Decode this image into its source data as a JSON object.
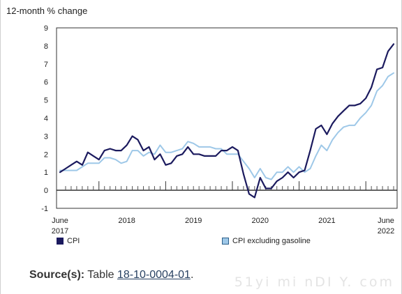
{
  "chart_data": {
    "type": "line",
    "ylabel": "12-month % change",
    "ylim": [
      -1,
      9
    ],
    "yticks": [
      9,
      8,
      7,
      6,
      5,
      4,
      3,
      2,
      1,
      0,
      -1
    ],
    "grid": false,
    "x_tick_labels": [
      {
        "label": "June",
        "sublabel": "2017",
        "month_index": 0
      },
      {
        "label": "2018",
        "month_index": 12
      },
      {
        "label": "2019",
        "month_index": 24
      },
      {
        "label": "2020",
        "month_index": 36
      },
      {
        "label": "2021",
        "month_index": 48
      },
      {
        "label": "June",
        "sublabel": "2022",
        "month_index": 60
      }
    ],
    "year_divider_month_index": [
      7,
      19,
      31,
      43,
      55
    ],
    "x_start": "2017-06",
    "x_end": "2022-06",
    "legend_position": "bottom",
    "series": [
      {
        "name": "CPI",
        "color": "#1b1a5e",
        "values": [
          1.0,
          1.2,
          1.4,
          1.6,
          1.4,
          2.1,
          1.9,
          1.7,
          2.2,
          2.3,
          2.2,
          2.2,
          2.5,
          3.0,
          2.8,
          2.2,
          2.4,
          1.7,
          2.0,
          1.4,
          1.5,
          1.9,
          2.0,
          2.4,
          2.0,
          2.0,
          1.9,
          1.9,
          1.9,
          2.2,
          2.2,
          2.4,
          2.2,
          0.9,
          -0.2,
          -0.4,
          0.7,
          0.1,
          0.1,
          0.5,
          0.7,
          1.0,
          0.7,
          1.0,
          1.1,
          2.2,
          3.4,
          3.6,
          3.1,
          3.7,
          4.1,
          4.4,
          4.7,
          4.7,
          4.8,
          5.1,
          5.7,
          6.7,
          6.8,
          7.7,
          8.1
        ]
      },
      {
        "name": "CPI excluding gasoline",
        "color": "#9ec8e8",
        "values": [
          1.1,
          1.1,
          1.1,
          1.1,
          1.3,
          1.5,
          1.5,
          1.5,
          1.8,
          1.8,
          1.7,
          1.5,
          1.6,
          2.2,
          2.2,
          1.9,
          2.1,
          2.0,
          2.5,
          2.1,
          2.1,
          2.2,
          2.3,
          2.7,
          2.6,
          2.4,
          2.4,
          2.4,
          2.3,
          2.3,
          2.0,
          2.0,
          2.0,
          1.6,
          1.2,
          0.7,
          1.2,
          0.7,
          0.6,
          1.0,
          1.0,
          1.3,
          1.0,
          1.3,
          1.0,
          1.2,
          1.9,
          2.5,
          2.2,
          2.8,
          3.2,
          3.5,
          3.6,
          3.6,
          4.0,
          4.3,
          4.7,
          5.5,
          5.8,
          6.3,
          6.5
        ]
      }
    ]
  },
  "source": {
    "label": "Source(s):",
    "prefix": "Table ",
    "link_text": "18-10-0004-01",
    "suffix": "."
  },
  "watermark": "51yi mi nDI Y. com"
}
